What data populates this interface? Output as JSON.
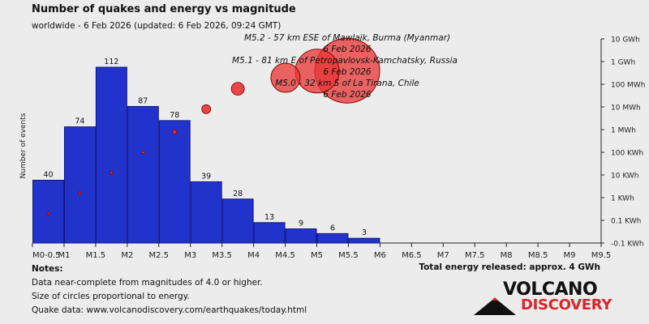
{
  "title": "Number of quakes and energy vs magnitude",
  "subtitle": "worldwide -  6 Feb 2026 (updated: 6 Feb 2026, 09:24 GMT)",
  "notes": {
    "heading": "Notes:",
    "lines": [
      "Data near-complete from magnitudes of 4.0 or higher.",
      "Size of circles proportional to energy.",
      "Quake data: www.volcanodiscovery.com/earthquakes/today.html"
    ]
  },
  "total_energy": "Total energy released: approx. 4 GWh",
  "logo": {
    "word1": "VOLCANO",
    "word2": "DISCOVERY"
  },
  "colors": {
    "bar": "#2233cc",
    "circle": "#e83434",
    "logo_red": "#d8262c"
  },
  "chart_data": {
    "type": "bar",
    "ylabel_left": "Number of events",
    "x_ticks": [
      "M0-0.5",
      "M1",
      "M1.5",
      "M2",
      "M2.5",
      "M3",
      "M3.5",
      "M4",
      "M4.5",
      "M5",
      "M5.5",
      "M6",
      "M6.5",
      "M7",
      "M7.5",
      "M8",
      "M8.5",
      "M9",
      "M9.5"
    ],
    "bar_bins": [
      "M0.5-1",
      "M1-1.5",
      "M1.5-2",
      "M2-2.5",
      "M2.5-3",
      "M3-3.5",
      "M3.5-4",
      "M4-4.5",
      "M4.5-5",
      "M5-5.5",
      "M5.5-6"
    ],
    "counts": [
      40,
      74,
      112,
      87,
      78,
      39,
      28,
      13,
      9,
      6,
      3
    ],
    "count_labels": [
      "40",
      "74",
      "112",
      "87",
      "78",
      "39",
      "28",
      "13",
      "9",
      "6",
      "3"
    ],
    "ylim_count": [
      0,
      112
    ],
    "energy_axis_labels": [
      "10 GWh",
      "1 GWh",
      "100 MWh",
      "10 MWh",
      "1 MWh",
      "100 KWh",
      "10 KWh",
      "1 KWh",
      "0.1 KWh",
      "-0.1 KWh"
    ],
    "energy_points": [
      {
        "bin": 0,
        "level": 7.7
      },
      {
        "bin": 1,
        "level": 6.8
      },
      {
        "bin": 2,
        "level": 5.9
      },
      {
        "bin": 3,
        "level": 5.0
      },
      {
        "bin": 4,
        "level": 4.1
      },
      {
        "bin": 5,
        "level": 3.1
      },
      {
        "bin": 6,
        "level": 2.2
      }
    ],
    "events": [
      {
        "label": "M5.2 - 57 km ESE of Mawlaik, Burma (Myanmar)",
        "date": "6 Feb 2026",
        "magnitude": 5.2,
        "level": 0.9
      },
      {
        "label": "M5.1 - 81 km E of Petropavlovsk-Kamchatsky, Russia",
        "date": "6 Feb 2026",
        "magnitude": 5.1,
        "level": 1.1
      },
      {
        "label": "M5.0 - 32 km S of La Tirana, Chile",
        "date": "6 Feb 2026",
        "magnitude": 5.0,
        "level": 1.5
      }
    ]
  }
}
